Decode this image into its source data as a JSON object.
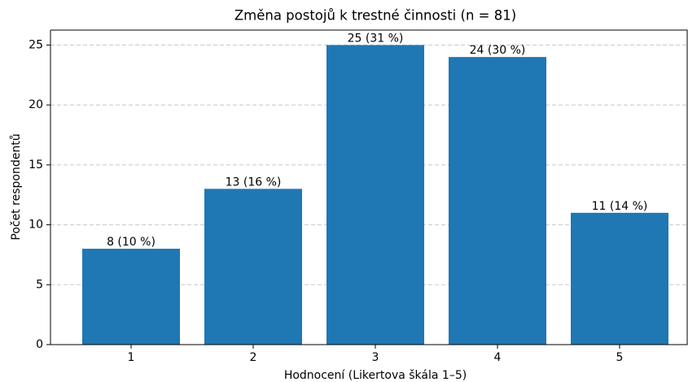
{
  "chart_data": {
    "type": "bar",
    "title": "Změna postojů k trestné činnosti (n = 81)",
    "x_label": "Hodnocení (Likertova škála 1–5)",
    "y_label": "Počet respondentů",
    "categories": [
      "1",
      "2",
      "3",
      "4",
      "5"
    ],
    "values": [
      8,
      13,
      25,
      24,
      11
    ],
    "value_labels": [
      "8 (10 %)",
      "13 (16 %)",
      "25 (31 %)",
      "24 (30 %)",
      "11 (14 %)"
    ],
    "color": "#1f77b4",
    "ylim": [
      0,
      26.25
    ],
    "yticks": [
      0,
      5,
      10,
      15,
      20,
      25
    ],
    "grid": true
  }
}
